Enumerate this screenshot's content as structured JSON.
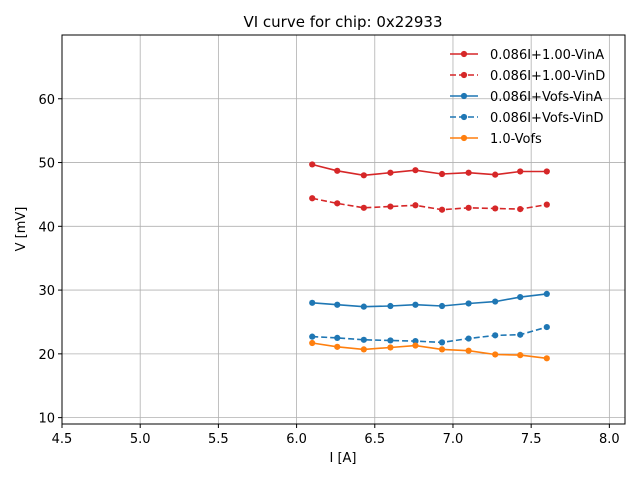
{
  "chart_data": {
    "type": "line",
    "title": "VI curve for chip: 0x22933",
    "xlabel": "I [A]",
    "ylabel": "V [mV]",
    "xlim": [
      4.5,
      8.1
    ],
    "ylim": [
      9,
      70
    ],
    "xticks": [
      "4.5",
      "5.0",
      "5.5",
      "6.0",
      "6.5",
      "7.0",
      "7.5",
      "8.0"
    ],
    "xtick_values": [
      4.5,
      5.0,
      5.5,
      6.0,
      6.5,
      7.0,
      7.5,
      8.0
    ],
    "yticks": [
      "10",
      "20",
      "30",
      "40",
      "50",
      "60"
    ],
    "ytick_values": [
      10,
      20,
      30,
      40,
      50,
      60
    ],
    "grid": true,
    "legend_position": "top-right",
    "x": [
      6.1,
      6.26,
      6.43,
      6.6,
      6.76,
      6.93,
      7.1,
      7.27,
      7.43,
      7.6
    ],
    "series": [
      {
        "name": "0.086I+1.00-VinA",
        "color": "#d62728",
        "dashed": false,
        "values": [
          49.7,
          48.7,
          48.0,
          48.4,
          48.8,
          48.2,
          48.4,
          48.1,
          48.6,
          48.6
        ]
      },
      {
        "name": "0.086I+1.00-VinD",
        "color": "#d62728",
        "dashed": true,
        "values": [
          44.4,
          43.6,
          42.9,
          43.1,
          43.3,
          42.6,
          42.9,
          42.8,
          42.7,
          43.4
        ]
      },
      {
        "name": "0.086I+Vofs-VinA",
        "color": "#1f77b4",
        "dashed": false,
        "values": [
          28.0,
          27.7,
          27.4,
          27.5,
          27.7,
          27.5,
          27.9,
          28.2,
          28.9,
          29.4
        ]
      },
      {
        "name": "0.086I+Vofs-VinD",
        "color": "#1f77b4",
        "dashed": true,
        "values": [
          22.7,
          22.5,
          22.2,
          22.1,
          22.0,
          21.8,
          22.4,
          22.9,
          23.0,
          24.2
        ]
      },
      {
        "name": "1.0-Vofs",
        "color": "#ff7f0e",
        "dashed": false,
        "values": [
          21.7,
          21.1,
          20.7,
          21.0,
          21.3,
          20.7,
          20.5,
          19.9,
          19.8,
          19.3
        ]
      }
    ]
  }
}
